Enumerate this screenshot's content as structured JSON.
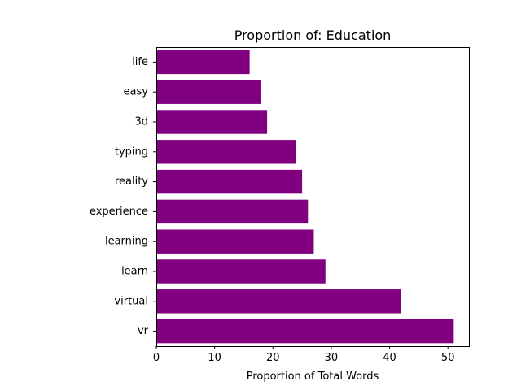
{
  "chart_data": {
    "type": "bar",
    "orientation": "horizontal",
    "title": "Proportion of: Education",
    "xlabel": "Proportion of Total Words",
    "ylabel": "",
    "categories": [
      "vr",
      "virtual",
      "learn",
      "learning",
      "experience",
      "reality",
      "typing",
      "3d",
      "easy",
      "life"
    ],
    "values": [
      51,
      42,
      29,
      27,
      26,
      25,
      24,
      19,
      18,
      16
    ],
    "xlim": [
      0,
      53.6
    ],
    "xticks": [
      0,
      10,
      20,
      30,
      40,
      50
    ],
    "bar_color": "#800080",
    "grid": false,
    "legend": "none"
  }
}
